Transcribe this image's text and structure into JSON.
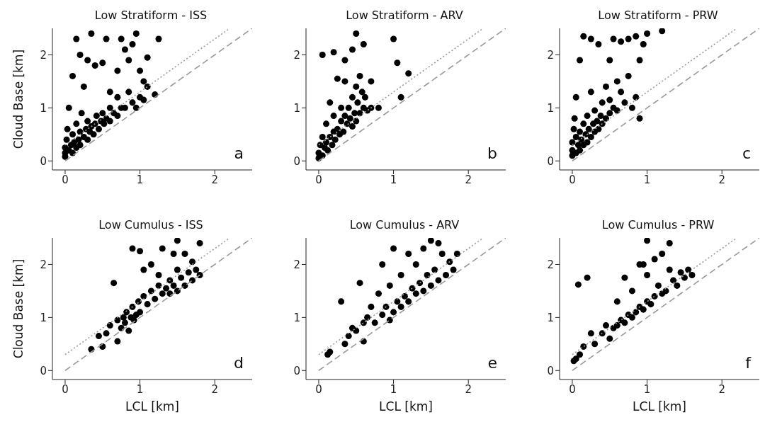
{
  "chart_data": [
    {
      "type": "scatter",
      "title": "Low Stratiform - ISS",
      "ylabel": "Cloud Base [km]",
      "xlim": [
        -0.17,
        2.5
      ],
      "ylim": [
        -0.17,
        2.5
      ],
      "xticks": [
        0,
        1,
        2
      ],
      "yticks": [
        0,
        1,
        2
      ],
      "annotations": [
        "a"
      ],
      "marker": "circle",
      "series": [
        {
          "color": "#000000",
          "x": [
            0,
            0,
            0,
            0.02,
            0.03,
            0.05,
            0.08,
            0.1,
            0.1,
            0.12,
            0.15,
            0.15,
            0.18,
            0.2,
            0.2,
            0.22,
            0.25,
            0.28,
            0.3,
            0.3,
            0.33,
            0.35,
            0.38,
            0.4,
            0.42,
            0.45,
            0.48,
            0.5,
            0.52,
            0.55,
            0.6,
            0.6,
            0.65,
            0.7,
            0.7,
            0.75,
            0.8,
            0.85,
            0.9,
            0.95,
            1.0,
            1.05,
            1.1,
            1.2,
            0.05,
            0.1,
            0.15,
            0.2,
            0.25,
            0.3,
            0.35,
            0.4,
            0.5,
            0.55,
            0.6,
            0.7,
            0.75,
            0.8,
            0.85,
            0.9,
            0.95,
            1.0,
            1.05,
            1.1,
            1.25
          ],
          "values": [
            0.08,
            0.15,
            0.25,
            0.4,
            0.6,
            0.2,
            0.3,
            0.15,
            0.5,
            0.35,
            0.25,
            0.7,
            0.4,
            0.3,
            0.55,
            0.9,
            0.45,
            0.6,
            0.4,
            0.75,
            0.55,
            0.65,
            0.5,
            0.7,
            0.85,
            0.6,
            0.75,
            0.9,
            0.7,
            0.8,
            0.75,
            1.0,
            0.9,
            0.85,
            1.2,
            1.0,
            1.0,
            1.3,
            1.1,
            1.0,
            1.2,
            1.15,
            1.4,
            1.25,
            1.0,
            1.6,
            2.3,
            2.0,
            1.4,
            1.9,
            2.4,
            1.8,
            1.85,
            2.3,
            1.3,
            1.7,
            2.3,
            2.1,
            1.9,
            2.2,
            2.4,
            1.7,
            1.5,
            1.95,
            2.3
          ]
        },
        {
          "type": "line",
          "marker": "none",
          "color": "#999999",
          "line_style": "dotted",
          "x": [
            0,
            2.2
          ],
          "values": [
            0.3,
            2.5
          ]
        },
        {
          "type": "line",
          "marker": "none",
          "color": "#999999",
          "line_style": "dashed",
          "x": [
            0,
            2.5
          ],
          "values": [
            0,
            2.5
          ]
        }
      ]
    },
    {
      "type": "scatter",
      "title": "Low Stratiform - ARV",
      "xlim": [
        -0.17,
        2.5
      ],
      "ylim": [
        -0.17,
        2.5
      ],
      "xticks": [
        0,
        1,
        2
      ],
      "yticks": [
        0,
        1,
        2
      ],
      "annotations": [
        "b"
      ],
      "marker": "circle",
      "series": [
        {
          "color": "#000000",
          "x": [
            0,
            0,
            0.02,
            0.05,
            0.05,
            0.08,
            0.1,
            0.1,
            0.12,
            0.15,
            0.15,
            0.18,
            0.2,
            0.2,
            0.22,
            0.25,
            0.25,
            0.28,
            0.3,
            0.3,
            0.33,
            0.35,
            0.35,
            0.38,
            0.4,
            0.42,
            0.45,
            0.45,
            0.48,
            0.5,
            0.5,
            0.52,
            0.55,
            0.55,
            0.58,
            0.6,
            0.62,
            0.65,
            0.7,
            0.7,
            0.05,
            0.2,
            0.35,
            0.45,
            0.5,
            0.6,
            1.0,
            1.05,
            1.2,
            1.1,
            0.8
          ],
          "values": [
            0.05,
            0.15,
            0.3,
            0.1,
            0.45,
            0.25,
            0.35,
            0.7,
            0.2,
            0.45,
            1.1,
            0.3,
            0.55,
            0.85,
            0.4,
            0.6,
            1.55,
            0.5,
            0.75,
            1.0,
            0.55,
            0.85,
            1.5,
            0.7,
            1.0,
            0.8,
            1.2,
            0.65,
            0.9,
            1.4,
            0.75,
            1.1,
            1.6,
            0.9,
            1.3,
            1.0,
            1.2,
            0.95,
            1.5,
            1.0,
            2.0,
            2.05,
            1.9,
            2.1,
            2.4,
            2.2,
            2.3,
            1.85,
            1.65,
            1.2,
            1.0
          ]
        },
        {
          "type": "line",
          "marker": "none",
          "color": "#999999",
          "line_style": "dotted",
          "x": [
            0,
            2.2
          ],
          "values": [
            0.3,
            2.5
          ]
        },
        {
          "type": "line",
          "marker": "none",
          "color": "#999999",
          "line_style": "dashed",
          "x": [
            0,
            2.5
          ],
          "values": [
            0,
            2.5
          ]
        }
      ]
    },
    {
      "type": "scatter",
      "title": "Low Stratiform - PRW",
      "xlim": [
        -0.17,
        2.5
      ],
      "ylim": [
        -0.17,
        2.5
      ],
      "xticks": [
        0,
        1,
        2
      ],
      "yticks": [
        0,
        1,
        2
      ],
      "annotations": [
        "c"
      ],
      "marker": "circle",
      "series": [
        {
          "color": "#000000",
          "x": [
            0,
            0,
            0,
            0.02,
            0.03,
            0.05,
            0.05,
            0.08,
            0.1,
            0.1,
            0.12,
            0.15,
            0.15,
            0.18,
            0.2,
            0.2,
            0.22,
            0.25,
            0.25,
            0.28,
            0.3,
            0.3,
            0.33,
            0.35,
            0.38,
            0.4,
            0.4,
            0.45,
            0.45,
            0.5,
            0.5,
            0.55,
            0.6,
            0.65,
            0.7,
            0.75,
            0.8,
            0.85,
            0.9,
            0.05,
            0.1,
            0.15,
            0.25,
            0.35,
            0.5,
            0.55,
            0.65,
            0.75,
            0.85,
            0.9,
            0.95,
            1.0,
            1.2,
            0.6
          ],
          "values": [
            0.1,
            0.2,
            0.35,
            0.6,
            0.8,
            0.15,
            0.45,
            0.3,
            0.2,
            0.55,
            0.4,
            0.3,
            0.7,
            0.5,
            0.35,
            0.85,
            0.6,
            0.45,
            1.3,
            0.7,
            0.55,
            0.95,
            0.75,
            0.6,
            0.85,
            0.7,
            1.1,
            0.8,
            1.4,
            0.9,
            1.15,
            1.0,
            0.95,
            1.3,
            1.1,
            1.6,
            1.0,
            1.2,
            0.8,
            1.2,
            1.9,
            2.35,
            2.3,
            2.2,
            1.9,
            2.3,
            2.25,
            2.3,
            2.35,
            1.9,
            2.2,
            2.4,
            2.45,
            1.5
          ]
        },
        {
          "type": "line",
          "marker": "none",
          "color": "#999999",
          "line_style": "dotted",
          "x": [
            0,
            2.2
          ],
          "values": [
            0.3,
            2.5
          ]
        },
        {
          "type": "line",
          "marker": "none",
          "color": "#999999",
          "line_style": "dashed",
          "x": [
            0,
            2.5
          ],
          "values": [
            0,
            2.5
          ]
        }
      ]
    },
    {
      "type": "scatter",
      "title": "Low Cumulus - ISS",
      "xlabel": "LCL [km]",
      "ylabel": "Cloud Base [km]",
      "xlim": [
        -0.17,
        2.5
      ],
      "ylim": [
        -0.17,
        2.5
      ],
      "xticks": [
        0,
        1,
        2
      ],
      "yticks": [
        0,
        1,
        2
      ],
      "annotations": [
        "d"
      ],
      "marker": "circle",
      "series": [
        {
          "color": "#000000",
          "x": [
            0.35,
            0.45,
            0.5,
            0.55,
            0.6,
            0.65,
            0.7,
            0.7,
            0.75,
            0.78,
            0.8,
            0.82,
            0.85,
            0.88,
            0.9,
            0.9,
            0.92,
            0.95,
            0.98,
            1.0,
            1.0,
            1.05,
            1.05,
            1.1,
            1.15,
            1.15,
            1.2,
            1.25,
            1.3,
            1.3,
            1.35,
            1.4,
            1.4,
            1.45,
            1.45,
            1.5,
            1.5,
            1.55,
            1.6,
            1.6,
            1.65,
            1.7,
            1.7,
            1.75,
            1.8,
            1.8,
            1.5,
            1.25
          ],
          "values": [
            0.4,
            0.65,
            0.45,
            0.7,
            0.85,
            1.65,
            0.55,
            0.95,
            0.8,
            1.0,
            0.9,
            1.1,
            0.75,
            1.0,
            1.2,
            2.3,
            0.95,
            1.05,
            1.3,
            1.1,
            2.25,
            1.4,
            1.9,
            1.25,
            1.5,
            2.0,
            1.35,
            1.6,
            1.45,
            2.3,
            1.55,
            1.7,
            1.45,
            2.2,
            1.6,
            1.5,
            1.9,
            1.75,
            1.6,
            2.2,
            1.85,
            1.7,
            2.05,
            1.9,
            2.4,
            1.8,
            2.45,
            1.8
          ]
        },
        {
          "type": "line",
          "marker": "none",
          "color": "#999999",
          "line_style": "dotted",
          "x": [
            0,
            2.2
          ],
          "values": [
            0.3,
            2.5
          ]
        },
        {
          "type": "line",
          "marker": "none",
          "color": "#999999",
          "line_style": "dashed",
          "x": [
            0,
            2.5
          ],
          "values": [
            0,
            2.5
          ]
        }
      ]
    },
    {
      "type": "scatter",
      "title": "Low Cumulus - ARV",
      "xlabel": "LCL [km]",
      "xlim": [
        -0.17,
        2.5
      ],
      "ylim": [
        -0.17,
        2.5
      ],
      "xticks": [
        0,
        1,
        2
      ],
      "yticks": [
        0,
        1,
        2
      ],
      "annotations": [
        "e"
      ],
      "marker": "circle",
      "series": [
        {
          "color": "#000000",
          "x": [
            0.12,
            0.15,
            0.3,
            0.35,
            0.4,
            0.45,
            0.5,
            0.55,
            0.6,
            0.6,
            0.65,
            0.7,
            0.75,
            0.8,
            0.85,
            0.85,
            0.9,
            0.95,
            0.95,
            1.0,
            1.0,
            1.05,
            1.1,
            1.1,
            1.15,
            1.2,
            1.2,
            1.25,
            1.3,
            1.3,
            1.35,
            1.4,
            1.4,
            1.45,
            1.5,
            1.5,
            1.55,
            1.6,
            1.65,
            1.7,
            1.75,
            1.8,
            1.85,
            1.6
          ],
          "values": [
            0.3,
            0.35,
            1.3,
            0.5,
            0.65,
            0.8,
            0.75,
            1.65,
            0.55,
            0.9,
            1.0,
            1.2,
            0.9,
            1.45,
            1.05,
            2.0,
            1.2,
            0.95,
            1.6,
            1.1,
            2.3,
            1.3,
            1.2,
            1.8,
            1.4,
            2.2,
            1.3,
            1.55,
            1.45,
            2.0,
            1.65,
            1.5,
            2.3,
            1.8,
            1.6,
            2.45,
            1.9,
            1.7,
            2.2,
            1.8,
            2.05,
            1.9,
            2.2,
            2.4
          ]
        },
        {
          "type": "line",
          "marker": "none",
          "color": "#999999",
          "line_style": "dotted",
          "x": [
            0,
            2.2
          ],
          "values": [
            0.3,
            2.5
          ]
        },
        {
          "type": "line",
          "marker": "none",
          "color": "#999999",
          "line_style": "dashed",
          "x": [
            0,
            2.5
          ],
          "values": [
            0,
            2.5
          ]
        }
      ]
    },
    {
      "type": "scatter",
      "title": "Low Cumulus - PRW",
      "xlabel": "LCL [km]",
      "xlim": [
        -0.17,
        2.5
      ],
      "ylim": [
        -0.17,
        2.5
      ],
      "xticks": [
        0,
        1,
        2
      ],
      "yticks": [
        0,
        1,
        2
      ],
      "annotations": [
        "f"
      ],
      "marker": "circle",
      "series": [
        {
          "color": "#000000",
          "x": [
            0.02,
            0.05,
            0.08,
            0.1,
            0.15,
            0.2,
            0.25,
            0.3,
            0.4,
            0.45,
            0.5,
            0.55,
            0.6,
            0.6,
            0.65,
            0.7,
            0.7,
            0.75,
            0.8,
            0.8,
            0.85,
            0.9,
            0.9,
            0.95,
            1.0,
            1.0,
            1.0,
            1.05,
            1.1,
            1.1,
            1.15,
            1.2,
            1.2,
            1.25,
            1.3,
            1.3,
            1.35,
            1.4,
            1.45,
            1.5,
            1.55,
            1.6,
            0.95
          ],
          "values": [
            0.18,
            0.22,
            1.62,
            0.3,
            0.45,
            1.75,
            0.7,
            0.5,
            0.7,
            0.85,
            0.6,
            0.8,
            0.85,
            1.3,
            0.95,
            0.9,
            1.75,
            1.05,
            1.0,
            1.5,
            1.1,
            1.2,
            2.0,
            1.15,
            1.3,
            1.8,
            2.45,
            1.25,
            1.4,
            2.1,
            1.6,
            1.45,
            2.2,
            1.5,
            1.9,
            2.4,
            1.7,
            1.6,
            1.85,
            1.75,
            1.9,
            1.8,
            2.0
          ]
        },
        {
          "type": "line",
          "marker": "none",
          "color": "#999999",
          "line_style": "dotted",
          "x": [
            0,
            2.2
          ],
          "values": [
            0.3,
            2.5
          ]
        },
        {
          "type": "line",
          "marker": "none",
          "color": "#999999",
          "line_style": "dashed",
          "x": [
            0,
            2.5
          ],
          "values": [
            0,
            2.5
          ]
        }
      ]
    }
  ]
}
